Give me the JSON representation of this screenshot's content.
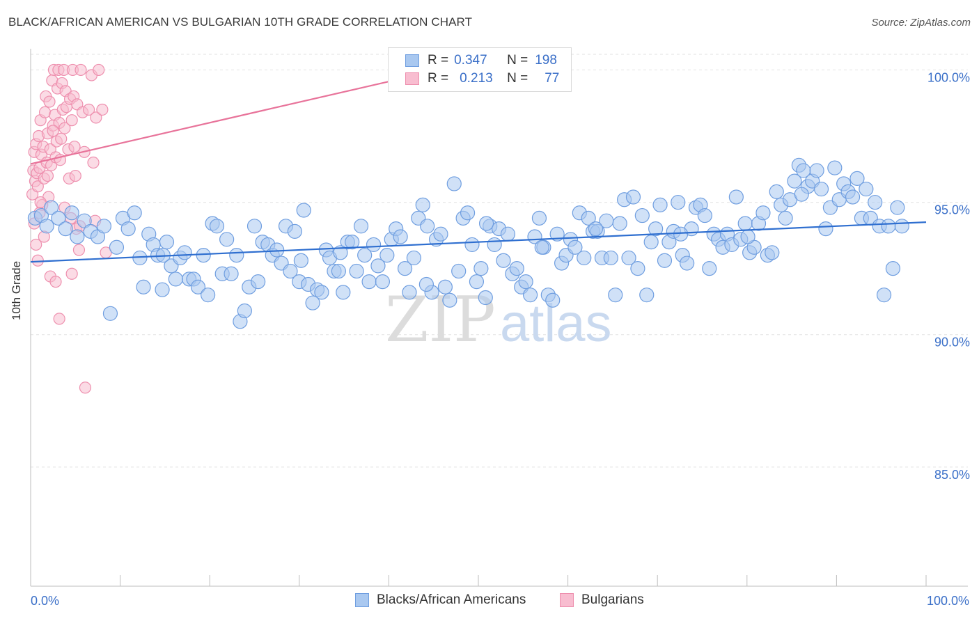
{
  "header": {
    "title": "BLACK/AFRICAN AMERICAN VS BULGARIAN 10TH GRADE CORRELATION CHART",
    "source": "Source: ZipAtlas.com"
  },
  "watermark": {
    "zip": "ZIP",
    "atlas": "atlas"
  },
  "legend_top": [
    {
      "r_label": "R =",
      "r_value": "0.347",
      "n_label": "N =",
      "n_value": "198"
    },
    {
      "r_label": "R =",
      "r_value": "0.213",
      "n_label": "N =",
      "n_value": "77"
    }
  ],
  "legend_bottom": [
    {
      "label": "Blacks/African Americans"
    },
    {
      "label": "Bulgarians"
    }
  ],
  "colors": {
    "blue_fill": "#a9c8f0",
    "blue_stroke": "#6f9ee0",
    "blue_line": "#2f6fd0",
    "pink_fill": "#f8bdd0",
    "pink_stroke": "#ee8fae",
    "pink_line": "#e8739a",
    "tick_label": "#3a6fc8",
    "grid": "#e2e2e2"
  },
  "chart_data": {
    "type": "scatter",
    "xlabel": "",
    "ylabel": "10th Grade",
    "xlim": [
      0,
      100
    ],
    "ylim": [
      80.5,
      100.8
    ],
    "x_tick_labels": [
      "0.0%",
      "100.0%"
    ],
    "y_ticks": [
      85,
      90,
      95,
      100
    ],
    "y_tick_labels": [
      "85.0%",
      "90.0%",
      "95.0%",
      "100.0%"
    ],
    "grid": true,
    "series": [
      {
        "name": "Blacks/African Americans",
        "color": "#a9c8f0",
        "trend": {
          "x": [
            0,
            100
          ],
          "y": [
            92.75,
            94.25
          ]
        },
        "points": [
          [
            0.5,
            94.4
          ],
          [
            1.2,
            94.5
          ],
          [
            1.8,
            94.1
          ],
          [
            2.3,
            94.8
          ],
          [
            3.1,
            94.4
          ],
          [
            3.9,
            94.0
          ],
          [
            4.6,
            94.6
          ],
          [
            5.2,
            93.7
          ],
          [
            6.0,
            94.3
          ],
          [
            6.7,
            93.9
          ],
          [
            7.5,
            93.7
          ],
          [
            8.2,
            94.1
          ],
          [
            8.9,
            90.8
          ],
          [
            9.6,
            93.3
          ],
          [
            10.3,
            94.4
          ],
          [
            10.9,
            94.0
          ],
          [
            11.6,
            94.6
          ],
          [
            12.2,
            92.9
          ],
          [
            12.6,
            91.8
          ],
          [
            13.2,
            93.8
          ],
          [
            13.7,
            93.4
          ],
          [
            14.2,
            93.0
          ],
          [
            14.7,
            91.7
          ],
          [
            15.2,
            93.5
          ],
          [
            15.7,
            92.6
          ],
          [
            16.2,
            92.1
          ],
          [
            16.7,
            92.9
          ],
          [
            17.2,
            93.1
          ],
          [
            17.7,
            92.1
          ],
          [
            18.2,
            92.1
          ],
          [
            18.7,
            91.8
          ],
          [
            19.3,
            93.0
          ],
          [
            19.8,
            91.5
          ],
          [
            20.3,
            94.2
          ],
          [
            20.8,
            94.1
          ],
          [
            21.4,
            92.3
          ],
          [
            21.9,
            93.6
          ],
          [
            22.4,
            92.3
          ],
          [
            23.0,
            93.0
          ],
          [
            23.4,
            90.5
          ],
          [
            23.9,
            90.9
          ],
          [
            24.4,
            91.8
          ],
          [
            25.0,
            94.1
          ],
          [
            25.4,
            92.0
          ],
          [
            25.9,
            93.5
          ],
          [
            26.5,
            93.4
          ],
          [
            27.0,
            93.0
          ],
          [
            27.5,
            93.2
          ],
          [
            28.0,
            92.7
          ],
          [
            28.5,
            94.1
          ],
          [
            29.0,
            92.4
          ],
          [
            29.5,
            93.9
          ],
          [
            30.0,
            92.0
          ],
          [
            30.5,
            94.7
          ],
          [
            31.0,
            91.9
          ],
          [
            31.5,
            91.2
          ],
          [
            32.0,
            91.7
          ],
          [
            32.5,
            91.6
          ],
          [
            33.0,
            93.2
          ],
          [
            33.4,
            92.9
          ],
          [
            33.9,
            92.4
          ],
          [
            34.4,
            92.4
          ],
          [
            34.9,
            91.6
          ],
          [
            35.4,
            93.5
          ],
          [
            35.9,
            93.5
          ],
          [
            36.4,
            92.4
          ],
          [
            36.9,
            94.1
          ],
          [
            37.3,
            93.0
          ],
          [
            37.8,
            92.0
          ],
          [
            38.3,
            93.4
          ],
          [
            38.8,
            92.6
          ],
          [
            39.3,
            92.0
          ],
          [
            39.8,
            93.0
          ],
          [
            40.3,
            93.6
          ],
          [
            40.8,
            94.0
          ],
          [
            41.3,
            93.7
          ],
          [
            41.8,
            92.5
          ],
          [
            42.3,
            91.6
          ],
          [
            42.8,
            92.9
          ],
          [
            43.3,
            94.4
          ],
          [
            43.8,
            94.9
          ],
          [
            44.3,
            94.1
          ],
          [
            44.8,
            91.6
          ],
          [
            45.3,
            93.6
          ],
          [
            45.8,
            93.8
          ],
          [
            46.3,
            91.8
          ],
          [
            46.8,
            91.3
          ],
          [
            47.3,
            95.7
          ],
          [
            47.8,
            92.4
          ],
          [
            48.3,
            94.4
          ],
          [
            48.8,
            94.6
          ],
          [
            49.3,
            93.4
          ],
          [
            49.8,
            92.0
          ],
          [
            50.3,
            92.5
          ],
          [
            50.8,
            91.4
          ],
          [
            51.3,
            94.1
          ],
          [
            51.8,
            93.4
          ],
          [
            52.3,
            94.0
          ],
          [
            52.8,
            92.8
          ],
          [
            53.3,
            93.8
          ],
          [
            53.8,
            92.3
          ],
          [
            54.3,
            92.5
          ],
          [
            54.8,
            91.8
          ],
          [
            55.3,
            92.0
          ],
          [
            55.8,
            91.5
          ],
          [
            56.3,
            93.7
          ],
          [
            56.8,
            94.4
          ],
          [
            57.3,
            93.3
          ],
          [
            57.8,
            91.5
          ],
          [
            58.3,
            91.3
          ],
          [
            58.8,
            93.8
          ],
          [
            59.3,
            92.7
          ],
          [
            59.8,
            93.0
          ],
          [
            60.3,
            93.6
          ],
          [
            60.8,
            93.3
          ],
          [
            61.3,
            94.6
          ],
          [
            61.8,
            92.9
          ],
          [
            62.3,
            94.4
          ],
          [
            62.8,
            93.9
          ],
          [
            63.3,
            93.9
          ],
          [
            63.8,
            92.9
          ],
          [
            64.3,
            94.3
          ],
          [
            64.8,
            92.9
          ],
          [
            65.3,
            91.5
          ],
          [
            65.8,
            94.2
          ],
          [
            66.3,
            95.1
          ],
          [
            66.8,
            92.9
          ],
          [
            67.3,
            95.2
          ],
          [
            67.8,
            92.5
          ],
          [
            68.3,
            94.5
          ],
          [
            68.8,
            91.5
          ],
          [
            69.3,
            93.5
          ],
          [
            69.8,
            94.0
          ],
          [
            70.3,
            94.9
          ],
          [
            70.8,
            92.8
          ],
          [
            71.3,
            93.5
          ],
          [
            71.8,
            93.9
          ],
          [
            72.3,
            95.0
          ],
          [
            72.8,
            93.0
          ],
          [
            73.3,
            92.7
          ],
          [
            73.8,
            94.0
          ],
          [
            74.3,
            94.8
          ],
          [
            74.8,
            94.9
          ],
          [
            75.3,
            94.5
          ],
          [
            75.8,
            92.5
          ],
          [
            76.3,
            93.8
          ],
          [
            76.8,
            93.6
          ],
          [
            77.3,
            93.3
          ],
          [
            77.8,
            93.8
          ],
          [
            78.3,
            93.4
          ],
          [
            78.8,
            95.2
          ],
          [
            79.3,
            93.6
          ],
          [
            79.8,
            94.2
          ],
          [
            80.3,
            93.1
          ],
          [
            80.8,
            93.3
          ],
          [
            81.3,
            94.2
          ],
          [
            81.8,
            94.6
          ],
          [
            82.3,
            93.0
          ],
          [
            82.8,
            93.1
          ],
          [
            83.3,
            95.4
          ],
          [
            83.8,
            94.9
          ],
          [
            84.3,
            94.4
          ],
          [
            84.8,
            95.1
          ],
          [
            85.3,
            95.8
          ],
          [
            85.8,
            96.4
          ],
          [
            86.3,
            96.2
          ],
          [
            86.8,
            95.6
          ],
          [
            87.3,
            95.8
          ],
          [
            87.8,
            96.2
          ],
          [
            88.3,
            95.5
          ],
          [
            88.8,
            94.0
          ],
          [
            89.3,
            94.8
          ],
          [
            89.8,
            96.3
          ],
          [
            90.3,
            95.1
          ],
          [
            90.8,
            95.7
          ],
          [
            91.3,
            95.4
          ],
          [
            91.8,
            95.2
          ],
          [
            92.3,
            95.9
          ],
          [
            92.8,
            94.4
          ],
          [
            93.3,
            95.5
          ],
          [
            93.8,
            94.4
          ],
          [
            94.3,
            95.0
          ],
          [
            94.8,
            94.1
          ],
          [
            95.3,
            91.5
          ],
          [
            95.8,
            94.1
          ],
          [
            96.3,
            92.5
          ],
          [
            96.8,
            94.8
          ],
          [
            97.3,
            94.1
          ],
          [
            14.8,
            93.0
          ],
          [
            34.6,
            93.1
          ],
          [
            44.2,
            91.9
          ],
          [
            57.1,
            93.3
          ],
          [
            63.1,
            94.0
          ],
          [
            72.6,
            93.8
          ],
          [
            80.1,
            93.7
          ],
          [
            86.1,
            95.3
          ],
          [
            30.2,
            92.8
          ],
          [
            50.9,
            94.2
          ]
        ]
      },
      {
        "name": "Bulgarians",
        "color": "#f8bdd0",
        "trend": {
          "x": [
            0,
            45
          ],
          "y": [
            96.45,
            99.95
          ]
        },
        "points": [
          [
            0.2,
            95.3
          ],
          [
            0.3,
            96.2
          ],
          [
            0.4,
            96.9
          ],
          [
            0.5,
            95.8
          ],
          [
            0.6,
            97.2
          ],
          [
            0.7,
            96.1
          ],
          [
            0.8,
            95.6
          ],
          [
            0.9,
            97.5
          ],
          [
            1.0,
            96.3
          ],
          [
            1.1,
            98.1
          ],
          [
            1.2,
            96.8
          ],
          [
            1.3,
            94.9
          ],
          [
            1.4,
            97.1
          ],
          [
            1.5,
            95.9
          ],
          [
            1.6,
            98.4
          ],
          [
            1.7,
            99.0
          ],
          [
            1.8,
            96.5
          ],
          [
            1.9,
            97.6
          ],
          [
            2.0,
            95.2
          ],
          [
            2.1,
            98.8
          ],
          [
            2.2,
            97.0
          ],
          [
            2.3,
            96.4
          ],
          [
            2.4,
            99.6
          ],
          [
            2.5,
            97.9
          ],
          [
            2.6,
            100.0
          ],
          [
            2.7,
            98.3
          ],
          [
            2.8,
            96.7
          ],
          [
            2.9,
            97.3
          ],
          [
            3.0,
            99.3
          ],
          [
            3.1,
            100.0
          ],
          [
            3.2,
            98.0
          ],
          [
            3.3,
            96.6
          ],
          [
            3.4,
            97.4
          ],
          [
            3.5,
            99.5
          ],
          [
            3.6,
            98.5
          ],
          [
            3.7,
            100.0
          ],
          [
            3.8,
            97.8
          ],
          [
            3.9,
            99.2
          ],
          [
            4.0,
            98.6
          ],
          [
            4.2,
            97.0
          ],
          [
            4.3,
            95.9
          ],
          [
            4.4,
            98.9
          ],
          [
            4.5,
            94.4
          ],
          [
            4.6,
            98.1
          ],
          [
            4.7,
            100.0
          ],
          [
            4.8,
            99.0
          ],
          [
            4.9,
            97.1
          ],
          [
            5.0,
            96.0
          ],
          [
            5.1,
            94.0
          ],
          [
            5.2,
            98.7
          ],
          [
            5.4,
            93.2
          ],
          [
            5.6,
            100.0
          ],
          [
            5.8,
            98.4
          ],
          [
            6.0,
            96.9
          ],
          [
            6.5,
            98.5
          ],
          [
            6.8,
            99.8
          ],
          [
            7.0,
            96.5
          ],
          [
            7.3,
            98.2
          ],
          [
            7.6,
            100.0
          ],
          [
            8.0,
            98.5
          ],
          [
            8.4,
            93.1
          ],
          [
            0.6,
            93.4
          ],
          [
            0.8,
            92.8
          ],
          [
            1.0,
            94.6
          ],
          [
            1.5,
            93.7
          ],
          [
            2.2,
            92.2
          ],
          [
            2.8,
            92.0
          ],
          [
            3.2,
            90.6
          ],
          [
            4.6,
            92.3
          ],
          [
            6.1,
            88.0
          ],
          [
            1.1,
            95.0
          ],
          [
            1.9,
            96.0
          ],
          [
            2.5,
            97.7
          ],
          [
            0.4,
            94.2
          ],
          [
            3.8,
            94.8
          ],
          [
            5.5,
            94.1
          ],
          [
            7.2,
            94.3
          ]
        ]
      }
    ]
  }
}
